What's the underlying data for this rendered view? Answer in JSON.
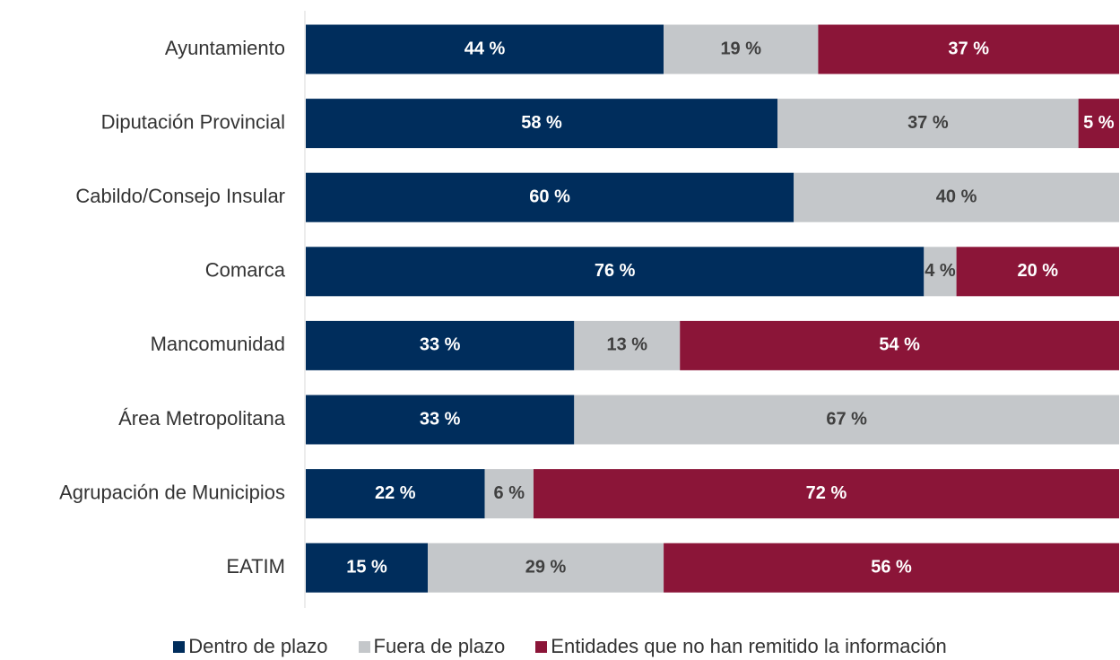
{
  "chart_data": {
    "type": "bar",
    "orientation": "horizontal",
    "stacked": true,
    "categories": [
      "Ayuntamiento",
      "Diputación Provincial",
      "Cabildo/Consejo Insular",
      "Comarca",
      "Mancomunidad",
      "Área Metropolitana",
      "Agrupación de Municipios",
      "EATIM"
    ],
    "series": [
      {
        "name": "Dentro de plazo",
        "color": "#002d5c",
        "label_color": "#ffffff",
        "values": [
          44,
          58,
          60,
          76,
          33,
          33,
          22,
          15
        ],
        "labels": [
          "44 %",
          "58 %",
          "60 %",
          "76 %",
          "33 %",
          "33 %",
          "22 %",
          "15 %"
        ]
      },
      {
        "name": "Fuera de plazo",
        "color": "#c4c7ca",
        "label_color": "#404040",
        "values": [
          19,
          37,
          40,
          4,
          13,
          67,
          6,
          29
        ],
        "labels": [
          "19 %",
          "37 %",
          "40 %",
          "4 %",
          "13 %",
          "67 %",
          "6 %",
          "29 %"
        ]
      },
      {
        "name": "Entidades que no han remitido la información",
        "color": "#8b1538",
        "label_color": "#ffffff",
        "values": [
          37,
          5,
          0,
          20,
          54,
          0,
          72,
          56
        ],
        "labels": [
          "37 %",
          "5 %",
          "",
          "20 %",
          "54 %",
          "",
          "72 %",
          "56 %"
        ]
      }
    ],
    "xlim": [
      0,
      100
    ],
    "grid": false,
    "legend_position": "bottom"
  }
}
